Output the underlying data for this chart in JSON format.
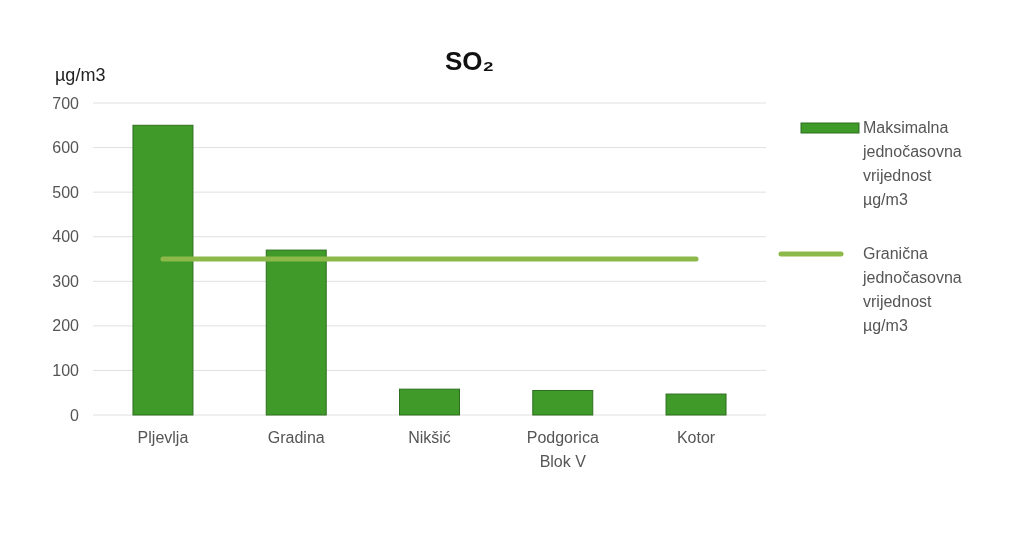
{
  "chart_data": {
    "type": "bar",
    "title": "SO₂",
    "ylabel": "µg/m3",
    "categories": [
      "Pljevlja",
      "Gradina",
      "Nikšić",
      "Podgorica Blok V",
      "Kotor"
    ],
    "series": [
      {
        "name": "Maksimalna jednočasovna vrijednost µg/m3",
        "color": "#3f9a2a",
        "values": [
          650,
          370,
          58,
          55,
          47
        ]
      },
      {
        "name": "Granična jednočasovna vrijednost µg/m3",
        "type": "line",
        "color": "#8db94a",
        "values": [
          350,
          350,
          350,
          350,
          350
        ]
      }
    ],
    "ylim": [
      0,
      700
    ],
    "yticks": [
      0,
      100,
      200,
      300,
      400,
      500,
      600,
      700
    ],
    "grid": "y",
    "legend": "right"
  }
}
